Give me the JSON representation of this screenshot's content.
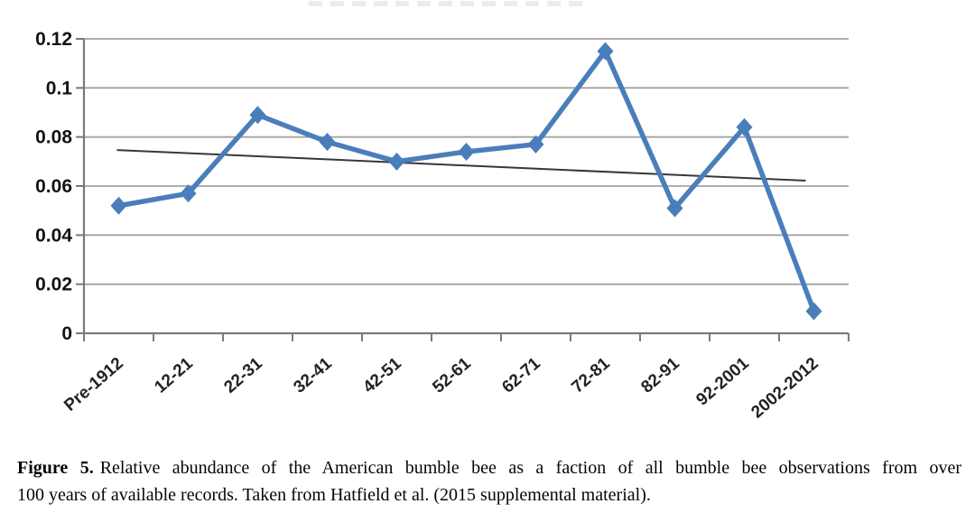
{
  "caption": {
    "label": "Figure 5.",
    "line1": "Relative abundance of the American bumble bee as a faction of all bumble bee observations from over",
    "line2": "100 years of available records. Taken from Hatfield et al. (2015 supplemental material)."
  },
  "chart_data": {
    "type": "line",
    "title": "",
    "xlabel": "",
    "ylabel": "",
    "categories": [
      "Pre-1912",
      "12-21",
      "22-31",
      "32-41",
      "42-51",
      "52-61",
      "62-71",
      "72-81",
      "82-91",
      "92-2001",
      "2002-2012"
    ],
    "series": [
      {
        "name": "Relative abundance of American bumble bee",
        "kind": "line-with-markers",
        "marker": "diamond",
        "color": "#4a7ebb",
        "values": [
          0.052,
          0.057,
          0.089,
          0.078,
          0.07,
          0.074,
          0.077,
          0.115,
          0.051,
          0.084,
          0.009
        ]
      },
      {
        "name": "Linear trendline",
        "kind": "trendline",
        "color": "#383838",
        "start_value": 0.0747,
        "end_value": 0.0622
      }
    ],
    "ylim": [
      0,
      0.12
    ],
    "ytick_step": 0.02,
    "ytick_labels": [
      "0",
      "0.02",
      "0.04",
      "0.06",
      "0.08",
      "0.1",
      "0.12"
    ],
    "x_label_rotation_deg": -41,
    "grid": true,
    "legend": "none",
    "styles": {
      "gridline_color": "#a3a3a3",
      "axis_color": "#7a7a7a",
      "tick_label_color": "#131313",
      "x_tick_label_color": "#232323"
    }
  }
}
